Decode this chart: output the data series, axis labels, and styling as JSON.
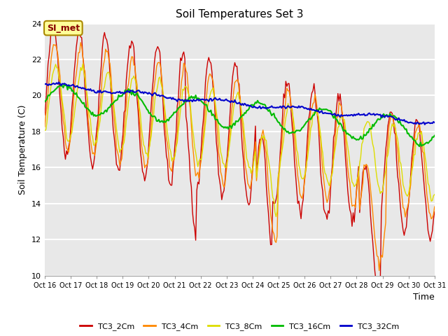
{
  "title": "Soil Temperatures Set 3",
  "xlabel": "Time",
  "ylabel": "Soil Temperature (C)",
  "ylim": [
    10,
    24
  ],
  "yticks": [
    10,
    12,
    14,
    16,
    18,
    20,
    22,
    24
  ],
  "n_points": 360,
  "colors": {
    "TC3_2Cm": "#cc0000",
    "TC3_4Cm": "#ff8800",
    "TC3_8Cm": "#dddd00",
    "TC3_16Cm": "#00bb00",
    "TC3_32Cm": "#0000cc"
  },
  "legend_labels": [
    "TC3_2Cm",
    "TC3_4Cm",
    "TC3_8Cm",
    "TC3_16Cm",
    "TC3_32Cm"
  ],
  "bg_color": "#e8e8e8",
  "fig_bg": "#ffffff",
  "annotation_text": "SI_met",
  "annotation_bg": "#ffff99",
  "annotation_border": "#aa8800",
  "xtick_labels": [
    "Oct 16",
    "Oct 17",
    "Oct 18",
    "Oct 19",
    "Oct 20",
    "Oct 21",
    "Oct 22",
    "Oct 23",
    "Oct 24",
    "Oct 25",
    "Oct 26",
    "Oct 27",
    "Oct 28",
    "Oct 29",
    "Oct 30",
    "Oct 31"
  ]
}
